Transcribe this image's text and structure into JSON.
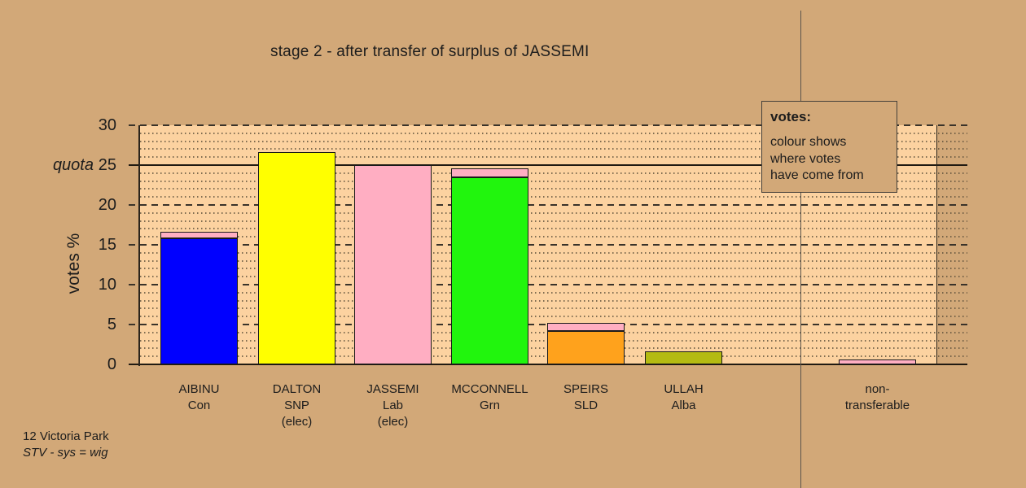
{
  "legend": {
    "heading": "votes:",
    "lines": [
      "colour shows",
      "where votes",
      "have come from"
    ]
  },
  "footer": {
    "line1": "12 Victoria Park",
    "line2": "STV - sys = wig"
  },
  "colors": {
    "page_background": "#d2a878",
    "plot_background": "#fcd2a0",
    "axis_line": "#2a241c",
    "grid_major": "#3a332a",
    "grid_minor": "#60523c",
    "quota_line": "#201a12",
    "separator_line": "#5a544c",
    "legend_border": "#45403a",
    "bar_border": "#1a1a1a",
    "con_blue": "#0000ff",
    "snp_yellow": "#ffff00",
    "lab_pink": "#ffaec2",
    "grn_green": "#21f50d",
    "sld_orange": "#ffa21c",
    "alba_olive": "#b4bb12"
  },
  "chart_data": {
    "type": "bar",
    "title": "stage 2 - after transfer of surplus of JASSEMI",
    "ylabel": "votes %",
    "ylim": [
      0,
      30
    ],
    "y_ticks": [
      0,
      5,
      10,
      15,
      20,
      25,
      30
    ],
    "quota": {
      "label": "quota",
      "value": 25
    },
    "bars": [
      {
        "label_lines": [
          "AIBINU",
          "Con"
        ],
        "segments": [
          {
            "from": "AIBINU",
            "color_key": "con_blue",
            "value": 15.8
          },
          {
            "from": "JASSEMI",
            "color_key": "lab_pink",
            "value": 0.8
          }
        ],
        "total": 16.6
      },
      {
        "label_lines": [
          "DALTON",
          "SNP",
          "(elec)"
        ],
        "segments": [
          {
            "from": "DALTON",
            "color_key": "snp_yellow",
            "value": 26.6
          }
        ],
        "total": 26.6
      },
      {
        "label_lines": [
          "JASSEMI",
          "Lab",
          "(elec)"
        ],
        "segments": [
          {
            "from": "JASSEMI",
            "color_key": "lab_pink",
            "value": 25
          }
        ],
        "total": 25
      },
      {
        "label_lines": [
          "MCCONNELL",
          "Grn"
        ],
        "segments": [
          {
            "from": "MCCONNELL",
            "color_key": "grn_green",
            "value": 23.5
          },
          {
            "from": "JASSEMI",
            "color_key": "lab_pink",
            "value": 1.1
          }
        ],
        "total": 24.6
      },
      {
        "label_lines": [
          "SPEIRS",
          "SLD"
        ],
        "segments": [
          {
            "from": "SPEIRS",
            "color_key": "sld_orange",
            "value": 4.2
          },
          {
            "from": "JASSEMI",
            "color_key": "lab_pink",
            "value": 1.0
          }
        ],
        "total": 5.2
      },
      {
        "label_lines": [
          "ULLAH",
          "Alba"
        ],
        "segments": [
          {
            "from": "ULLAH",
            "color_key": "alba_olive",
            "value": 1.6
          }
        ],
        "total": 1.6
      },
      {
        "label_lines": [
          "non-",
          "transferable"
        ],
        "segments": [
          {
            "from": "JASSEMI",
            "color_key": "lab_pink",
            "value": 0.6
          }
        ],
        "total": 0.6
      }
    ]
  }
}
